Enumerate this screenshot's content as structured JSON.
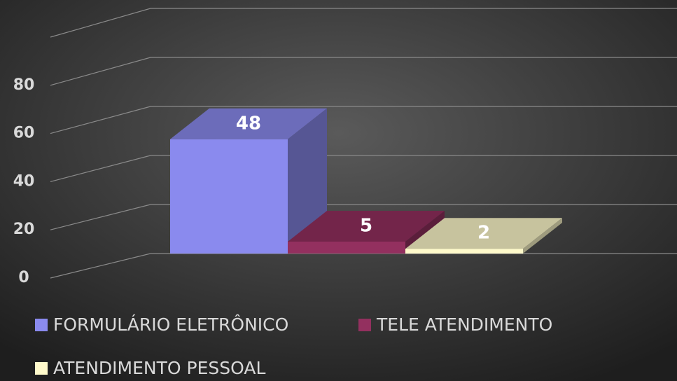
{
  "chart_data": {
    "type": "bar",
    "series": [
      {
        "name": "FORMULÁRIO ELETRÔNICO",
        "color": "#8a8aee",
        "values": [
          48
        ]
      },
      {
        "name": "TELE ATENDIMENTO",
        "color": "#93305f",
        "values": [
          5
        ]
      },
      {
        "name": "ATENDIMENTO PESSOAL",
        "color": "#fffacb",
        "values": [
          2
        ]
      }
    ],
    "ylim": [
      0,
      100
    ],
    "yticks": [
      0,
      20,
      40,
      60,
      80
    ],
    "grid": true,
    "legend": "bottom"
  }
}
